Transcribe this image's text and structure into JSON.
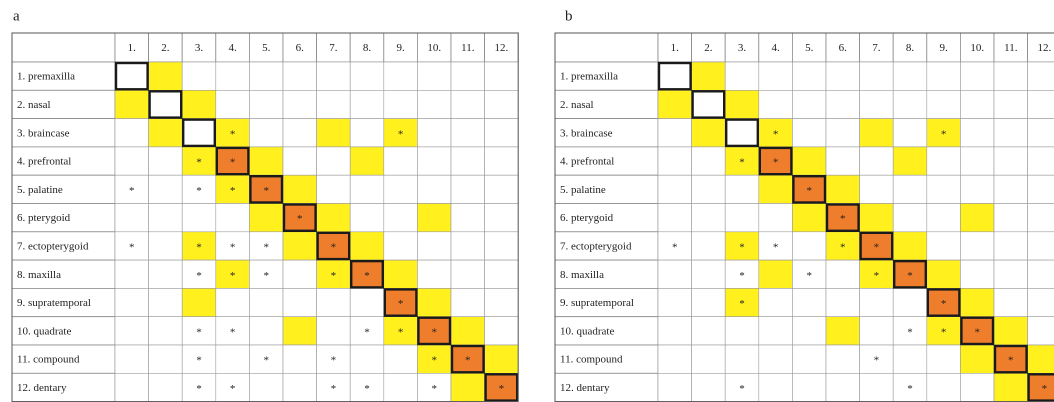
{
  "panels": [
    {
      "label": "a",
      "columns": [
        "1.",
        "2.",
        "3.",
        "4.",
        "5.",
        "6.",
        "7.",
        "8.",
        "9.",
        "10.",
        "11.",
        "12."
      ],
      "colors": {
        "w": "#ffffff",
        "y": "#fff01e",
        "o": "#ee7d2c"
      },
      "rows": [
        {
          "label": "1. premaxilla",
          "fills": [
            "w",
            "y",
            "w",
            "w",
            "w",
            "w",
            "w",
            "w",
            "w",
            "w",
            "w",
            "w"
          ],
          "stars": [
            null,
            null,
            null,
            null,
            null,
            null,
            null,
            null,
            null,
            null,
            null,
            null
          ]
        },
        {
          "label": "2. nasal",
          "fills": [
            "y",
            "w",
            "y",
            "w",
            "w",
            "w",
            "w",
            "w",
            "w",
            "w",
            "w",
            "w"
          ],
          "stars": [
            null,
            null,
            null,
            null,
            null,
            null,
            null,
            null,
            null,
            null,
            null,
            null
          ]
        },
        {
          "label": "3. braincase",
          "fills": [
            "w",
            "y",
            "w",
            "y",
            "w",
            "w",
            "y",
            "w",
            "y",
            "w",
            "w",
            "w"
          ],
          "stars": [
            null,
            null,
            null,
            "*",
            null,
            null,
            null,
            null,
            "*",
            null,
            null,
            null
          ]
        },
        {
          "label": "4. prefrontal",
          "fills": [
            "w",
            "w",
            "y",
            "o",
            "y",
            "w",
            "w",
            "y",
            "w",
            "w",
            "w",
            "w"
          ],
          "stars": [
            null,
            null,
            "*",
            "*",
            null,
            null,
            null,
            null,
            null,
            null,
            null,
            null
          ]
        },
        {
          "label": "5. palatine",
          "fills": [
            "w",
            "w",
            "w",
            "y",
            "o",
            "y",
            "w",
            "w",
            "w",
            "w",
            "w",
            "w"
          ],
          "stars": [
            "*",
            null,
            "*",
            "*",
            "*",
            null,
            null,
            null,
            null,
            null,
            null,
            null
          ]
        },
        {
          "label": "6. pterygoid",
          "fills": [
            "w",
            "w",
            "w",
            "w",
            "y",
            "o",
            "y",
            "w",
            "w",
            "y",
            "w",
            "w"
          ],
          "stars": [
            null,
            null,
            null,
            null,
            null,
            "*",
            null,
            null,
            null,
            null,
            null,
            null
          ]
        },
        {
          "label": "7. ectopterygoid",
          "fills": [
            "w",
            "w",
            "y",
            "w",
            "w",
            "y",
            "o",
            "y",
            "w",
            "w",
            "w",
            "w"
          ],
          "stars": [
            "*",
            null,
            "*",
            "*",
            "*",
            null,
            "*",
            null,
            null,
            null,
            null,
            null
          ]
        },
        {
          "label": "8. maxilla",
          "fills": [
            "w",
            "w",
            "w",
            "y",
            "w",
            "w",
            "y",
            "o",
            "y",
            "w",
            "w",
            "w"
          ],
          "stars": [
            null,
            null,
            "*",
            "*",
            "*",
            null,
            "*",
            "*",
            null,
            null,
            null,
            null
          ]
        },
        {
          "label": "9. supratemporal",
          "fills": [
            "w",
            "w",
            "y",
            "w",
            "w",
            "w",
            "w",
            "w",
            "o",
            "y",
            "w",
            "w"
          ],
          "stars": [
            null,
            null,
            null,
            null,
            null,
            null,
            null,
            null,
            "*",
            null,
            null,
            null
          ]
        },
        {
          "label": "10. quadrate",
          "fills": [
            "w",
            "w",
            "w",
            "w",
            "w",
            "y",
            "w",
            "w",
            "y",
            "o",
            "y",
            "w"
          ],
          "stars": [
            null,
            null,
            "*",
            "*",
            null,
            null,
            null,
            "*",
            "*",
            "*",
            null,
            null
          ]
        },
        {
          "label": "11. compound",
          "fills": [
            "w",
            "w",
            "w",
            "w",
            "w",
            "w",
            "w",
            "w",
            "w",
            "y",
            "o",
            "y"
          ],
          "stars": [
            null,
            null,
            "*",
            null,
            "*",
            null,
            "*",
            null,
            null,
            "*",
            "*",
            null
          ]
        },
        {
          "label": "12. dentary",
          "fills": [
            "w",
            "w",
            "w",
            "w",
            "w",
            "w",
            "w",
            "w",
            "w",
            "w",
            "y",
            "o"
          ],
          "stars": [
            null,
            null,
            "*",
            "*",
            null,
            null,
            "*",
            "*",
            null,
            "*",
            null,
            "*"
          ]
        }
      ]
    },
    {
      "label": "b",
      "columns": [
        "1.",
        "2.",
        "3.",
        "4.",
        "5.",
        "6.",
        "7.",
        "8.",
        "9.",
        "10.",
        "11.",
        "12."
      ],
      "colors": {
        "w": "#ffffff",
        "y": "#fff01e",
        "o": "#ee7d2c"
      },
      "rows": [
        {
          "label": "1. premaxilla",
          "fills": [
            "w",
            "y",
            "w",
            "w",
            "w",
            "w",
            "w",
            "w",
            "w",
            "w",
            "w",
            "w"
          ],
          "stars": [
            null,
            null,
            null,
            null,
            null,
            null,
            null,
            null,
            null,
            null,
            null,
            null
          ]
        },
        {
          "label": "2. nasal",
          "fills": [
            "y",
            "w",
            "y",
            "w",
            "w",
            "w",
            "w",
            "w",
            "w",
            "w",
            "w",
            "w"
          ],
          "stars": [
            null,
            null,
            null,
            null,
            null,
            null,
            null,
            null,
            null,
            null,
            null,
            null
          ]
        },
        {
          "label": "3. braincase",
          "fills": [
            "w",
            "y",
            "w",
            "y",
            "w",
            "w",
            "y",
            "w",
            "y",
            "w",
            "w",
            "w"
          ],
          "stars": [
            null,
            null,
            null,
            "*",
            null,
            null,
            null,
            null,
            "*",
            null,
            null,
            null
          ]
        },
        {
          "label": "4. prefrontal",
          "fills": [
            "w",
            "w",
            "y",
            "o",
            "y",
            "w",
            "w",
            "y",
            "w",
            "w",
            "w",
            "w"
          ],
          "stars": [
            null,
            null,
            "*",
            "*",
            null,
            null,
            null,
            null,
            null,
            null,
            null,
            null
          ]
        },
        {
          "label": "5. palatine",
          "fills": [
            "w",
            "w",
            "w",
            "y",
            "o",
            "y",
            "w",
            "w",
            "w",
            "w",
            "w",
            "w"
          ],
          "stars": [
            null,
            null,
            null,
            null,
            "*",
            null,
            null,
            null,
            null,
            null,
            null,
            null
          ]
        },
        {
          "label": "6. pterygoid",
          "fills": [
            "w",
            "w",
            "w",
            "w",
            "y",
            "o",
            "y",
            "w",
            "w",
            "y",
            "w",
            "w"
          ],
          "stars": [
            null,
            null,
            null,
            null,
            null,
            "*",
            null,
            null,
            null,
            null,
            null,
            null
          ]
        },
        {
          "label": "7. ectopterygoid",
          "fills": [
            "w",
            "w",
            "y",
            "w",
            "w",
            "y",
            "o",
            "y",
            "w",
            "w",
            "w",
            "w"
          ],
          "stars": [
            "*",
            null,
            "*",
            "*",
            null,
            "*",
            "*",
            null,
            null,
            null,
            null,
            null
          ]
        },
        {
          "label": "8. maxilla",
          "fills": [
            "w",
            "w",
            "w",
            "y",
            "w",
            "w",
            "y",
            "o",
            "y",
            "w",
            "w",
            "w"
          ],
          "stars": [
            null,
            null,
            "*",
            null,
            "*",
            null,
            "*",
            "*",
            null,
            null,
            null,
            null
          ]
        },
        {
          "label": "9. supratemporal",
          "fills": [
            "w",
            "w",
            "y",
            "w",
            "w",
            "w",
            "w",
            "w",
            "o",
            "y",
            "w",
            "w"
          ],
          "stars": [
            null,
            null,
            "*",
            null,
            null,
            null,
            null,
            null,
            "*",
            null,
            null,
            null
          ]
        },
        {
          "label": "10. quadrate",
          "fills": [
            "w",
            "w",
            "w",
            "w",
            "w",
            "y",
            "w",
            "w",
            "y",
            "o",
            "y",
            "w"
          ],
          "stars": [
            null,
            null,
            null,
            null,
            null,
            null,
            null,
            "*",
            "*",
            "*",
            null,
            null
          ]
        },
        {
          "label": "11. compound",
          "fills": [
            "w",
            "w",
            "w",
            "w",
            "w",
            "w",
            "w",
            "w",
            "w",
            "y",
            "o",
            "y"
          ],
          "stars": [
            null,
            null,
            null,
            null,
            null,
            null,
            "*",
            null,
            null,
            null,
            "*",
            null
          ]
        },
        {
          "label": "12. dentary",
          "fills": [
            "w",
            "w",
            "w",
            "w",
            "w",
            "w",
            "w",
            "w",
            "w",
            "w",
            "y",
            "o"
          ],
          "stars": [
            null,
            null,
            "*",
            null,
            null,
            null,
            null,
            "*",
            null,
            null,
            null,
            "*"
          ]
        }
      ]
    }
  ]
}
